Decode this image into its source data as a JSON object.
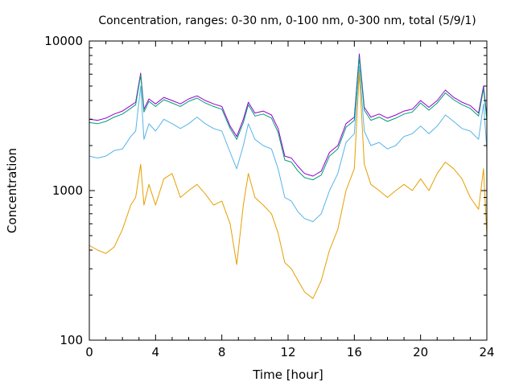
{
  "chart_data": {
    "type": "line",
    "title": "Concentration, ranges: 0-30 nm, 0-100 nm, 0-300 nm, total (5/9/1)",
    "xlabel": "Time [hour]",
    "ylabel": "Concentration",
    "xlim": [
      0,
      24
    ],
    "ylim": [
      100,
      10000
    ],
    "yscale": "log",
    "grid": false,
    "legend": "none",
    "x_ticks": [
      0,
      4,
      8,
      12,
      16,
      20,
      24
    ],
    "y_ticks": [
      100,
      1000,
      10000
    ],
    "y_tick_labels": [
      "100",
      "1000",
      "10000"
    ],
    "x": [
      0,
      0.5,
      1,
      1.5,
      2,
      2.5,
      2.8,
      3.1,
      3.3,
      3.6,
      4,
      4.5,
      5,
      5.5,
      6,
      6.5,
      7,
      7.5,
      8,
      8.5,
      8.9,
      9.3,
      9.6,
      10,
      10.5,
      11,
      11.4,
      11.8,
      12.2,
      12.6,
      13,
      13.5,
      14,
      14.5,
      15,
      15.5,
      16,
      16.3,
      16.6,
      17,
      17.5,
      18,
      18.5,
      19,
      19.5,
      20,
      20.5,
      21,
      21.5,
      22,
      22.5,
      23,
      23.5,
      23.8,
      24
    ],
    "series": [
      {
        "color": "#9400d3",
        "values": [
          3000,
          2950,
          3050,
          3250,
          3400,
          3700,
          3900,
          6100,
          3500,
          4100,
          3800,
          4200,
          4000,
          3800,
          4100,
          4300,
          4000,
          3800,
          3650,
          2700,
          2300,
          3000,
          3900,
          3300,
          3400,
          3200,
          2600,
          1700,
          1650,
          1450,
          1300,
          1250,
          1350,
          1800,
          2000,
          2800,
          3100,
          8200,
          3600,
          3100,
          3250,
          3050,
          3200,
          3400,
          3500,
          4000,
          3600,
          4000,
          4700,
          4200,
          3900,
          3700,
          3300,
          5000,
          3100
        ]
      },
      {
        "color": "#009e73",
        "values": [
          2850,
          2800,
          2900,
          3100,
          3250,
          3550,
          3750,
          5900,
          3350,
          3950,
          3650,
          4050,
          3850,
          3650,
          3950,
          4150,
          3850,
          3650,
          3500,
          2600,
          2200,
          2850,
          3750,
          3150,
          3250,
          3050,
          2450,
          1600,
          1550,
          1350,
          1220,
          1180,
          1270,
          1700,
          1900,
          2650,
          2950,
          7800,
          3450,
          2950,
          3100,
          2900,
          3050,
          3250,
          3350,
          3850,
          3450,
          3850,
          4500,
          4050,
          3750,
          3550,
          3150,
          4800,
          2950
        ]
      },
      {
        "color": "#56b4e9",
        "values": [
          1700,
          1650,
          1700,
          1850,
          1900,
          2300,
          2500,
          5000,
          2200,
          2800,
          2500,
          3000,
          2800,
          2600,
          2800,
          3100,
          2800,
          2600,
          2500,
          1800,
          1400,
          2000,
          2800,
          2200,
          2000,
          1900,
          1400,
          900,
          850,
          720,
          650,
          620,
          700,
          1000,
          1300,
          2100,
          2400,
          6800,
          2500,
          2000,
          2100,
          1900,
          2000,
          2300,
          2400,
          2700,
          2400,
          2700,
          3200,
          2900,
          2600,
          2500,
          2200,
          3800,
          1900
        ]
      },
      {
        "color": "#e69f00",
        "values": [
          430,
          400,
          380,
          420,
          550,
          800,
          900,
          1500,
          800,
          1100,
          800,
          1200,
          1300,
          900,
          1000,
          1100,
          950,
          800,
          850,
          600,
          320,
          800,
          1300,
          900,
          800,
          700,
          520,
          330,
          300,
          250,
          210,
          190,
          250,
          400,
          550,
          1000,
          1400,
          6200,
          1500,
          1100,
          1000,
          900,
          1000,
          1100,
          1000,
          1200,
          1000,
          1300,
          1550,
          1400,
          1200,
          900,
          750,
          1400,
          500
        ]
      }
    ]
  }
}
